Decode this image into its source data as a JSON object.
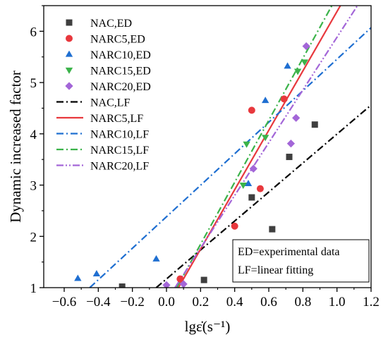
{
  "chart_data": {
    "type": "scatter",
    "xlabel": "lgε̇(s⁻¹)",
    "ylabel": "Dynamic increased factor",
    "xlim": [
      -0.72,
      1.2
    ],
    "ylim": [
      1.0,
      6.5
    ],
    "x_ticks": [
      -0.6,
      -0.4,
      -0.2,
      0.0,
      0.2,
      0.4,
      0.6,
      0.8,
      1.0,
      1.2
    ],
    "x_tick_labels": [
      "−0.6",
      "−0.4",
      "−0.2",
      "0.0",
      "0.2",
      "0.4",
      "0.6",
      "0.8",
      "1.0",
      "1.2"
    ],
    "y_ticks": [
      1,
      2,
      3,
      4,
      5,
      6
    ],
    "y_tick_labels": [
      "1",
      "2",
      "3",
      "4",
      "5",
      "6"
    ],
    "grid": false,
    "legend_position": "top-left",
    "annotation": [
      "ED=experimental data",
      "LF=linear fitting"
    ],
    "series": [
      {
        "name": "NAC,ED",
        "kind": "points",
        "marker": "square",
        "color": "#3f3f3f",
        "points": [
          [
            -0.26,
            1.02
          ],
          [
            0.22,
            1.15
          ],
          [
            0.5,
            2.76
          ],
          [
            0.62,
            2.14
          ],
          [
            0.72,
            3.55
          ],
          [
            0.87,
            4.18
          ]
        ]
      },
      {
        "name": "NARC5,ED",
        "kind": "points",
        "marker": "circle",
        "color": "#e8383d",
        "points": [
          [
            0.08,
            1.17
          ],
          [
            0.4,
            2.2
          ],
          [
            0.5,
            4.46
          ],
          [
            0.55,
            2.93
          ],
          [
            0.69,
            4.68
          ]
        ]
      },
      {
        "name": "NARC10,ED",
        "kind": "points",
        "marker": "triangle-up",
        "color": "#1f6fd1",
        "points": [
          [
            -0.52,
            1.18
          ],
          [
            -0.41,
            1.27
          ],
          [
            -0.06,
            1.56
          ],
          [
            0.48,
            3.03
          ],
          [
            0.58,
            4.65
          ],
          [
            0.71,
            5.32
          ]
        ]
      },
      {
        "name": "NARC15,ED",
        "kind": "points",
        "marker": "triangle-down",
        "color": "#3bb34a",
        "points": [
          [
            0.45,
            3.0
          ],
          [
            0.47,
            3.8
          ],
          [
            0.58,
            3.93
          ],
          [
            0.77,
            5.22
          ],
          [
            0.81,
            5.4
          ]
        ]
      },
      {
        "name": "NARC20,ED",
        "kind": "points",
        "marker": "diamond",
        "color": "#a366d8",
        "points": [
          [
            0.0,
            1.05
          ],
          [
            0.1,
            1.07
          ],
          [
            0.51,
            3.32
          ],
          [
            0.73,
            3.81
          ],
          [
            0.76,
            4.31
          ],
          [
            0.82,
            5.71
          ]
        ]
      },
      {
        "name": "NAC,LF",
        "kind": "line",
        "dash": "dashdot",
        "color": "#000000",
        "points": [
          [
            -0.06,
            1.0
          ],
          [
            1.2,
            4.56
          ]
        ]
      },
      {
        "name": "NARC5,LF",
        "kind": "line",
        "dash": "solid",
        "color": "#e8383d",
        "points": [
          [
            0.07,
            1.0
          ],
          [
            1.02,
            6.5
          ]
        ]
      },
      {
        "name": "NARC10,LF",
        "kind": "line",
        "dash": "dashdot",
        "color": "#1f6fd1",
        "points": [
          [
            -0.45,
            1.0
          ],
          [
            1.2,
            6.07
          ]
        ]
      },
      {
        "name": "NARC15,LF",
        "kind": "line",
        "dash": "dashdot",
        "color": "#3bb34a",
        "points": [
          [
            0.06,
            1.0
          ],
          [
            0.97,
            6.5
          ]
        ]
      },
      {
        "name": "NARC20,LF",
        "kind": "line",
        "dash": "dashdotdot",
        "color": "#a366d8",
        "points": [
          [
            0.05,
            1.0
          ],
          [
            1.12,
            6.5
          ]
        ]
      }
    ]
  }
}
